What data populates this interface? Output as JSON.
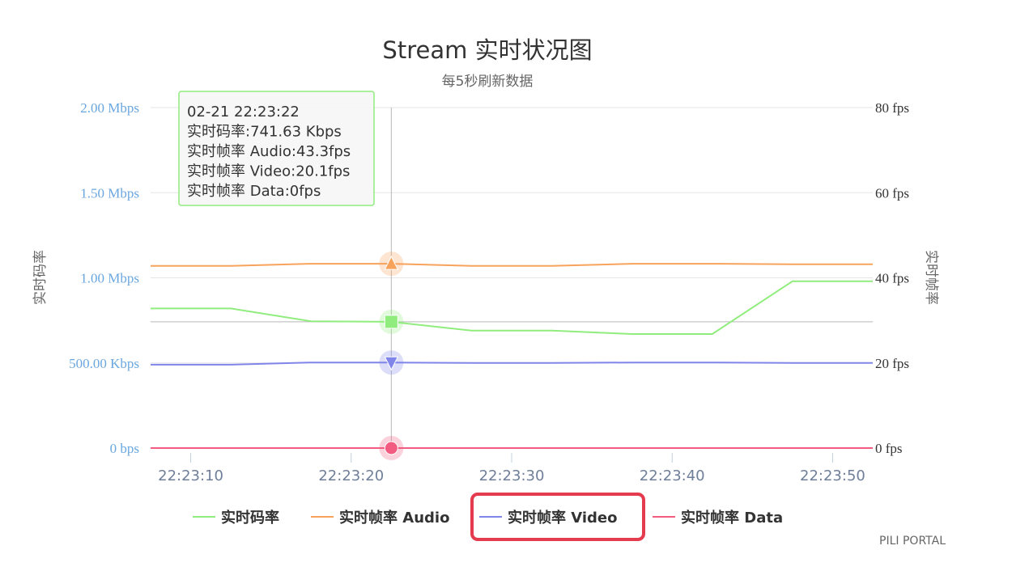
{
  "chart_data": {
    "type": "line",
    "title": "Stream 实时状况图",
    "subtitle": "每5秒刷新数据",
    "y_left": {
      "label": "实时码率",
      "min": 0,
      "max": 2000,
      "ticks": [
        0,
        500,
        1000,
        1500,
        2000
      ],
      "tick_labels": [
        "0 bps",
        "500.00 Kbps",
        "1.00 Mbps",
        "1.50 Mbps",
        "2.00 Mbps"
      ]
    },
    "y_right": {
      "label": "实时帧率",
      "min": 0,
      "max": 80,
      "ticks": [
        0,
        20,
        40,
        60,
        80
      ],
      "tick_labels": [
        "0 fps",
        "20 fps",
        "40 fps",
        "60 fps",
        "80 fps"
      ]
    },
    "x_axis": {
      "min": "22:23:07.5",
      "max": "22:23:52.5",
      "ticks": [
        "22:23:10",
        "22:23:20",
        "22:23:30",
        "22:23:40",
        "22:23:50"
      ]
    },
    "x": [
      "22:23:07.5",
      "22:23:12.5",
      "22:23:17.5",
      "22:23:22.5",
      "22:23:27.5",
      "22:23:32.5",
      "22:23:37.5",
      "22:23:42.5",
      "22:23:47.5",
      "22:23:52.5"
    ],
    "series": [
      {
        "name": "实时码率",
        "axis": "left",
        "color": "#90ed7d",
        "marker": "square",
        "values": [
          820,
          820,
          745,
          741.63,
          690,
          690,
          670,
          670,
          980,
          980
        ]
      },
      {
        "name": "实时帧率 Audio",
        "axis": "right",
        "color": "#f7a35c",
        "marker": "triangle",
        "values": [
          42.8,
          42.8,
          43.3,
          43.3,
          42.8,
          42.8,
          43.3,
          43.3,
          43.2,
          43.2
        ]
      },
      {
        "name": "实时帧率 Video",
        "axis": "right",
        "color": "#8085e9",
        "marker": "triangle-down",
        "values": [
          19.6,
          19.6,
          20.1,
          20.1,
          20.0,
          20.0,
          20.1,
          20.1,
          20.0,
          20.0
        ]
      },
      {
        "name": "实时帧率 Data",
        "axis": "right",
        "color": "#f15c80",
        "marker": "circle",
        "values": [
          0,
          0,
          0,
          0,
          0,
          0,
          0,
          0,
          0,
          0
        ]
      }
    ],
    "crosshair_x": "22:23:22.5",
    "legend": {
      "placement": "bottom",
      "highlighted": "实时帧率 Video",
      "highlight_color": "#e53b4f"
    },
    "tooltip": {
      "lines": [
        "02-21 22:23:22",
        "实时码率:741.63 Kbps",
        "实时帧率 Audio:43.3fps",
        "实时帧率 Video:20.1fps",
        "实时帧率 Data:0fps"
      ],
      "border_color": "#90ed7d"
    },
    "credits": "PILI PORTAL",
    "grid": true
  }
}
